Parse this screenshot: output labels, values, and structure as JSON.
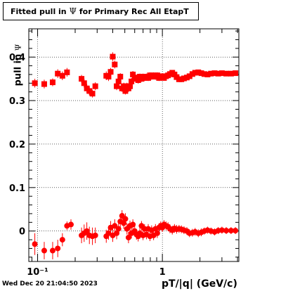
{
  "header": {
    "title_prefix": "Fitted pull in",
    "title_symbol": "Ψ",
    "title_suffix": "for Primary Rec All EtapT"
  },
  "footer": {
    "timestamp": "Wed Dec 20 21:04:50 2023"
  },
  "axes": {
    "ylabel_prefix": "pull in",
    "ylabel_symbol": "Ψ",
    "xlabel": "pT/|q| (GeV/c)"
  },
  "chart_data": {
    "type": "scatter",
    "xscale": "log",
    "xlim": [
      0.085,
      4.1
    ],
    "ylim": [
      -0.07,
      0.465
    ],
    "grid": true,
    "marker_color": "#ff0000",
    "x_tick_labels": [
      {
        "value": 0.1,
        "label": "10⁻¹"
      },
      {
        "value": 1,
        "label": "1"
      }
    ],
    "y_tick_labels": [
      {
        "value": 0,
        "label": "0"
      },
      {
        "value": 0.1,
        "label": "0.1"
      },
      {
        "value": 0.2,
        "label": "0.2"
      },
      {
        "value": 0.3,
        "label": "0.3"
      },
      {
        "value": 0.4,
        "label": "0.4"
      }
    ],
    "series": [
      {
        "points": [
          [
            0.095,
            0.34,
            0.01
          ],
          [
            0.113,
            0.338,
            0.01
          ],
          [
            0.132,
            0.342,
            0.009
          ],
          [
            0.145,
            0.362,
            0.01
          ],
          [
            0.158,
            0.357,
            0.01
          ],
          [
            0.172,
            0.365,
            0.01
          ],
          [
            0.225,
            0.35,
            0.009
          ],
          [
            0.236,
            0.34,
            0.01
          ],
          [
            0.248,
            0.328,
            0.01
          ],
          [
            0.26,
            0.322,
            0.01
          ],
          [
            0.275,
            0.316,
            0.009
          ],
          [
            0.29,
            0.333,
            0.009
          ],
          [
            0.355,
            0.357,
            0.01
          ],
          [
            0.37,
            0.355,
            0.01
          ],
          [
            0.385,
            0.366,
            0.009
          ],
          [
            0.4,
            0.401,
            0.01
          ],
          [
            0.415,
            0.383,
            0.009
          ],
          [
            0.43,
            0.333,
            0.009
          ],
          [
            0.445,
            0.344,
            0.009
          ],
          [
            0.46,
            0.355,
            0.008
          ],
          [
            0.475,
            0.328,
            0.008
          ],
          [
            0.49,
            0.333,
            0.008
          ],
          [
            0.505,
            0.322,
            0.008
          ],
          [
            0.52,
            0.333,
            0.008
          ],
          [
            0.535,
            0.328,
            0.008
          ],
          [
            0.55,
            0.333,
            0.008
          ],
          [
            0.565,
            0.344,
            0.008
          ],
          [
            0.58,
            0.36,
            0.008
          ],
          [
            0.6,
            0.353,
            0.008
          ],
          [
            0.62,
            0.35,
            0.008
          ],
          [
            0.64,
            0.347,
            0.008
          ],
          [
            0.66,
            0.355,
            0.007
          ],
          [
            0.68,
            0.35,
            0.007
          ],
          [
            0.7,
            0.355,
            0.007
          ],
          [
            0.72,
            0.352,
            0.007
          ],
          [
            0.745,
            0.355,
            0.007
          ],
          [
            0.77,
            0.352,
            0.007
          ],
          [
            0.795,
            0.358,
            0.007
          ],
          [
            0.82,
            0.355,
            0.007
          ],
          [
            0.85,
            0.358,
            0.007
          ],
          [
            0.88,
            0.355,
            0.007
          ],
          [
            0.91,
            0.358,
            0.007
          ],
          [
            0.94,
            0.352,
            0.007
          ],
          [
            0.97,
            0.355,
            0.007
          ],
          [
            1.0,
            0.356,
            0.007
          ],
          [
            1.03,
            0.352,
            0.006
          ],
          [
            1.07,
            0.356,
            0.006
          ],
          [
            1.11,
            0.358,
            0.006
          ],
          [
            1.15,
            0.361,
            0.006
          ],
          [
            1.2,
            0.364,
            0.006
          ],
          [
            1.25,
            0.36,
            0.006
          ],
          [
            1.3,
            0.354,
            0.006
          ],
          [
            1.36,
            0.349,
            0.006
          ],
          [
            1.42,
            0.349,
            0.006
          ],
          [
            1.49,
            0.351,
            0.006
          ],
          [
            1.57,
            0.353,
            0.006
          ],
          [
            1.65,
            0.356,
            0.006
          ],
          [
            1.74,
            0.361,
            0.006
          ],
          [
            1.83,
            0.364,
            0.006
          ],
          [
            1.94,
            0.365,
            0.006
          ],
          [
            2.05,
            0.363,
            0.006
          ],
          [
            2.17,
            0.361,
            0.006
          ],
          [
            2.3,
            0.36,
            0.006
          ],
          [
            2.45,
            0.362,
            0.006
          ],
          [
            2.62,
            0.363,
            0.006
          ],
          [
            2.8,
            0.362,
            0.006
          ],
          [
            3.0,
            0.363,
            0.006
          ],
          [
            3.25,
            0.362,
            0.006
          ],
          [
            3.55,
            0.362,
            0.006
          ],
          [
            3.85,
            0.363,
            0.006
          ]
        ]
      },
      {
        "points": [
          [
            0.095,
            -0.03,
            0.025
          ],
          [
            0.113,
            -0.045,
            0.02
          ],
          [
            0.132,
            -0.045,
            0.02
          ],
          [
            0.145,
            -0.04,
            0.02
          ],
          [
            0.158,
            -0.02,
            0.015
          ],
          [
            0.172,
            0.012,
            0.01
          ],
          [
            0.185,
            0.015,
            0.012
          ],
          [
            0.225,
            -0.01,
            0.018
          ],
          [
            0.236,
            -0.005,
            0.02
          ],
          [
            0.248,
            0.0,
            0.02
          ],
          [
            0.26,
            -0.01,
            0.02
          ],
          [
            0.275,
            -0.012,
            0.02
          ],
          [
            0.29,
            -0.01,
            0.018
          ],
          [
            0.355,
            -0.012,
            0.015
          ],
          [
            0.37,
            -0.005,
            0.015
          ],
          [
            0.385,
            0.008,
            0.015
          ],
          [
            0.4,
            -0.01,
            0.015
          ],
          [
            0.415,
            0.012,
            0.015
          ],
          [
            0.43,
            -0.005,
            0.014
          ],
          [
            0.445,
            0.005,
            0.014
          ],
          [
            0.46,
            0.022,
            0.014
          ],
          [
            0.475,
            0.035,
            0.013
          ],
          [
            0.49,
            0.018,
            0.013
          ],
          [
            0.505,
            0.028,
            0.013
          ],
          [
            0.52,
            0.005,
            0.013
          ],
          [
            0.535,
            -0.015,
            0.013
          ],
          [
            0.55,
            0.012,
            0.012
          ],
          [
            0.565,
            -0.005,
            0.012
          ],
          [
            0.58,
            0.015,
            0.012
          ],
          [
            0.6,
            0.0,
            0.012
          ],
          [
            0.62,
            -0.008,
            0.012
          ],
          [
            0.64,
            -0.012,
            0.012
          ],
          [
            0.66,
            -0.005,
            0.012
          ],
          [
            0.68,
            0.012,
            0.011
          ],
          [
            0.7,
            -0.01,
            0.011
          ],
          [
            0.72,
            0.005,
            0.011
          ],
          [
            0.745,
            -0.008,
            0.011
          ],
          [
            0.77,
            0.005,
            0.011
          ],
          [
            0.795,
            -0.012,
            0.011
          ],
          [
            0.82,
            0.002,
            0.011
          ],
          [
            0.85,
            -0.01,
            0.011
          ],
          [
            0.88,
            0.005,
            0.011
          ],
          [
            0.91,
            -0.005,
            0.011
          ],
          [
            0.94,
            0.008,
            0.01
          ],
          [
            0.97,
            0.012,
            0.01
          ],
          [
            1.0,
            0.008,
            0.01
          ],
          [
            1.03,
            0.015,
            0.01
          ],
          [
            1.07,
            0.012,
            0.01
          ],
          [
            1.11,
            0.01,
            0.01
          ],
          [
            1.15,
            0.005,
            0.01
          ],
          [
            1.2,
            0.002,
            0.01
          ],
          [
            1.25,
            0.006,
            0.01
          ],
          [
            1.3,
            0.004,
            0.01
          ],
          [
            1.36,
            0.005,
            0.009
          ],
          [
            1.42,
            0.004,
            0.009
          ],
          [
            1.49,
            0.002,
            0.009
          ],
          [
            1.57,
            0.0,
            0.009
          ],
          [
            1.65,
            -0.005,
            0.009
          ],
          [
            1.74,
            -0.004,
            0.009
          ],
          [
            1.83,
            -0.002,
            0.009
          ],
          [
            1.94,
            -0.005,
            0.009
          ],
          [
            2.05,
            -0.003,
            0.009
          ],
          [
            2.17,
            0.0,
            0.008
          ],
          [
            2.3,
            0.002,
            0.008
          ],
          [
            2.45,
            0.0,
            0.008
          ],
          [
            2.62,
            -0.002,
            0.008
          ],
          [
            2.8,
            0.001,
            0.008
          ],
          [
            3.0,
            0.002,
            0.008
          ],
          [
            3.25,
            0.001,
            0.008
          ],
          [
            3.55,
            0.001,
            0.008
          ],
          [
            3.85,
            0.001,
            0.008
          ]
        ]
      }
    ]
  }
}
